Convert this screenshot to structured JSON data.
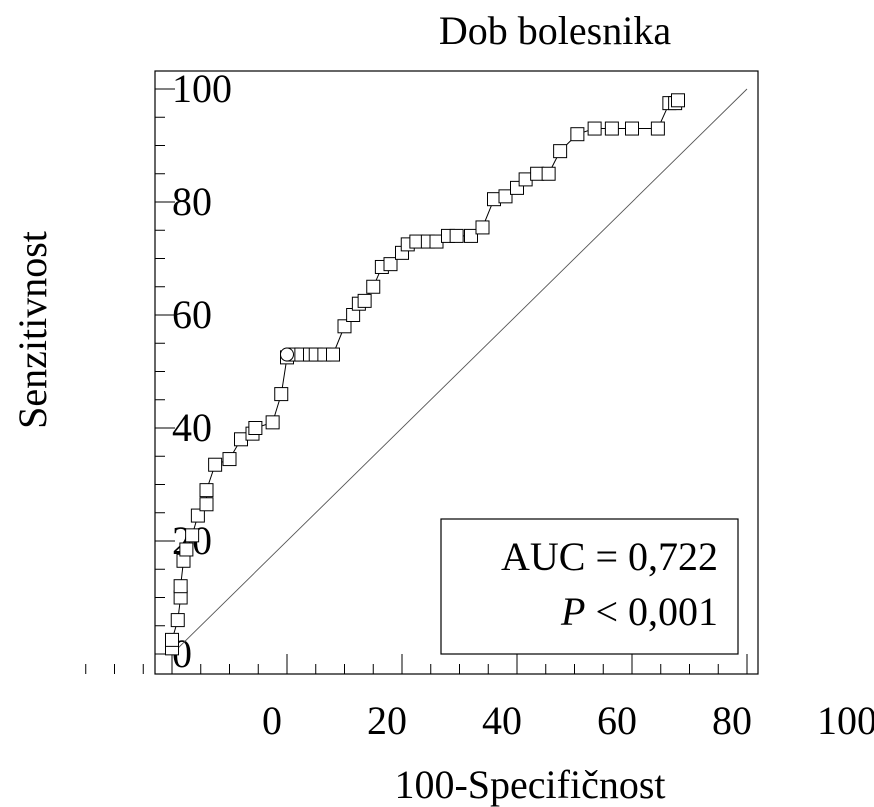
{
  "chart_data": {
    "type": "line",
    "title": "Dob bolesnika",
    "xlabel": "100-Specifičnost",
    "ylabel": "Senzitivnost",
    "xlim": [
      -17.5,
      102.5
    ],
    "ylim": [
      -5,
      103
    ],
    "xticks": [
      0,
      20,
      40,
      60,
      80,
      100
    ],
    "yticks": [
      0,
      20,
      40,
      60,
      80,
      100
    ],
    "grid": false,
    "series": [
      {
        "marker": "square",
        "x": [
          0.0,
          0.0,
          1.0,
          1.5,
          1.5,
          2.0,
          2.5,
          3.5,
          4.5,
          6.0,
          6.0,
          7.5,
          10.0,
          12.0,
          14.0,
          14.5,
          17.5,
          19.0,
          20.0,
          21.0,
          22.5,
          24.0,
          25.0,
          26.5,
          28.0,
          30.0,
          31.5,
          32.5,
          33.5,
          35.0,
          36.5,
          38.0,
          40.0,
          41.0,
          42.5,
          44.5,
          46.0,
          48.0,
          49.5,
          52.0,
          54.0,
          56.0,
          58.0,
          60.0,
          61.5,
          63.5,
          65.5,
          67.5,
          70.5,
          73.5,
          76.5,
          80.0,
          84.5,
          86.5,
          87.5,
          88.0
        ],
        "y": [
          1.0,
          2.5,
          6.0,
          10.0,
          12.0,
          16.5,
          18.5,
          21.0,
          24.5,
          26.5,
          29.0,
          33.5,
          34.5,
          38.0,
          39.0,
          40.0,
          41.0,
          46.0,
          52.5,
          53.0,
          53.0,
          53.0,
          53.0,
          53.0,
          53.0,
          58.0,
          60.0,
          62.0,
          62.5,
          65.0,
          68.5,
          69.0,
          71.0,
          72.5,
          73.0,
          73.0,
          73.0,
          74.0,
          74.0,
          74.0,
          75.5,
          80.5,
          81.0,
          82.5,
          84.0,
          85.0,
          85.0,
          89.0,
          92.0,
          93.0,
          93.0,
          93.0,
          93.0,
          97.5,
          97.5,
          98.0
        ]
      }
    ],
    "optimal_point": {
      "marker": "circle",
      "x": 20.0,
      "y": 53.0
    },
    "reference_line": [
      [
        0,
        0
      ],
      [
        100,
        100
      ]
    ],
    "annotation": {
      "auc_label": "AUC = 0,722",
      "p_symbol": "P",
      "p_rest": " < 0,001"
    }
  }
}
